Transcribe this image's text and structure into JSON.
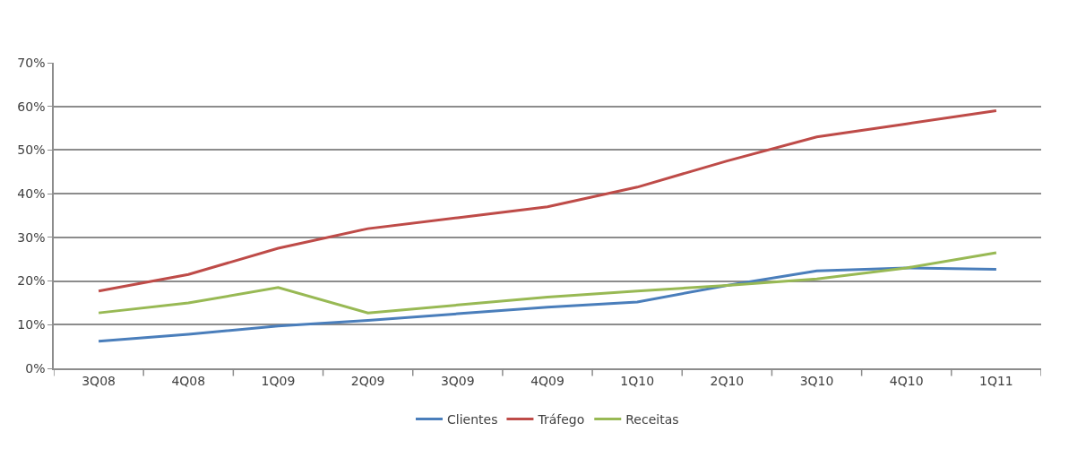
{
  "chart_data": {
    "type": "line",
    "categories": [
      "3Q08",
      "4Q08",
      "1Q09",
      "2Q09",
      "3Q09",
      "4Q09",
      "1Q10",
      "2Q10",
      "3Q10",
      "4Q10",
      "1Q11"
    ],
    "series": [
      {
        "name": "Clientes",
        "color": "#4a7ebb",
        "values": [
          6.2,
          7.8,
          9.7,
          11,
          12.5,
          14,
          15.2,
          19,
          22.3,
          23,
          22.7
        ]
      },
      {
        "name": "Tráfego",
        "color": "#be4b48",
        "values": [
          17.7,
          21.5,
          27.5,
          32,
          34.5,
          37,
          41.5,
          47.5,
          53,
          56,
          59
        ]
      },
      {
        "name": "Receitas",
        "color": "#98b954",
        "values": [
          12.7,
          15,
          18.5,
          12.7,
          14.5,
          16.3,
          17.7,
          19,
          20.5,
          23,
          26.5
        ]
      }
    ],
    "ylim": [
      0,
      70
    ],
    "yticks": [
      {
        "value": 0,
        "label": "0%"
      },
      {
        "value": 10,
        "label": "10%"
      },
      {
        "value": 20,
        "label": "20%"
      },
      {
        "value": 30,
        "label": "30%"
      },
      {
        "value": 40,
        "label": "40%"
      },
      {
        "value": 50,
        "label": "50%"
      },
      {
        "value": 60,
        "label": "60%"
      },
      {
        "value": 70,
        "label": "70%"
      }
    ],
    "grid": "y",
    "legend": "bottom",
    "marker": "none",
    "line_style": "solid"
  }
}
